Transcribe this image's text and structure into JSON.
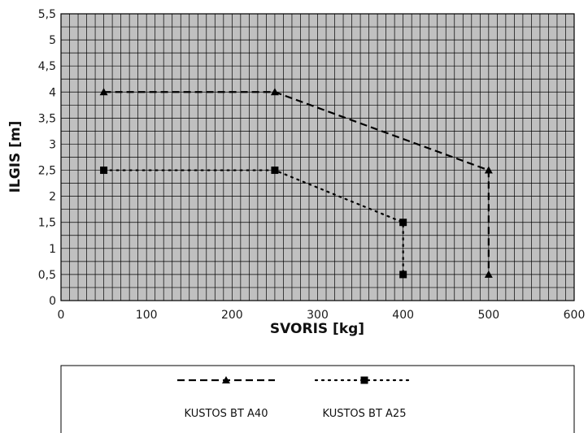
{
  "chart_data": {
    "type": "line",
    "title": "",
    "xlabel": "SVORIS [kg]",
    "ylabel": "ILGIS [m]",
    "xlim": [
      0,
      600
    ],
    "ylim": [
      0,
      5.5
    ],
    "x_ticks": [
      "0",
      "100",
      "200",
      "300",
      "400",
      "500",
      "600"
    ],
    "y_ticks": [
      "0",
      "0,5",
      "1",
      "1,5",
      "2",
      "2,5",
      "3",
      "3,5",
      "4",
      "4,5",
      "5",
      "5,5"
    ],
    "grid": true,
    "legend_position": "bottom",
    "series": [
      {
        "name": "KUSTOS BT A40",
        "marker": "triangle",
        "line_style": "dashed",
        "points": [
          [
            50,
            4
          ],
          [
            250,
            4
          ],
          [
            500,
            2.5
          ],
          [
            500,
            0.5
          ]
        ]
      },
      {
        "name": "KUSTOS BT A25",
        "marker": "square",
        "line_style": "dotted",
        "points": [
          [
            50,
            2.5
          ],
          [
            250,
            2.5
          ],
          [
            400,
            1.5
          ],
          [
            400,
            0.5
          ]
        ]
      }
    ],
    "colors": {
      "plot_background": "#c0c0c0",
      "grid": "#000000",
      "series": "#000000"
    }
  }
}
